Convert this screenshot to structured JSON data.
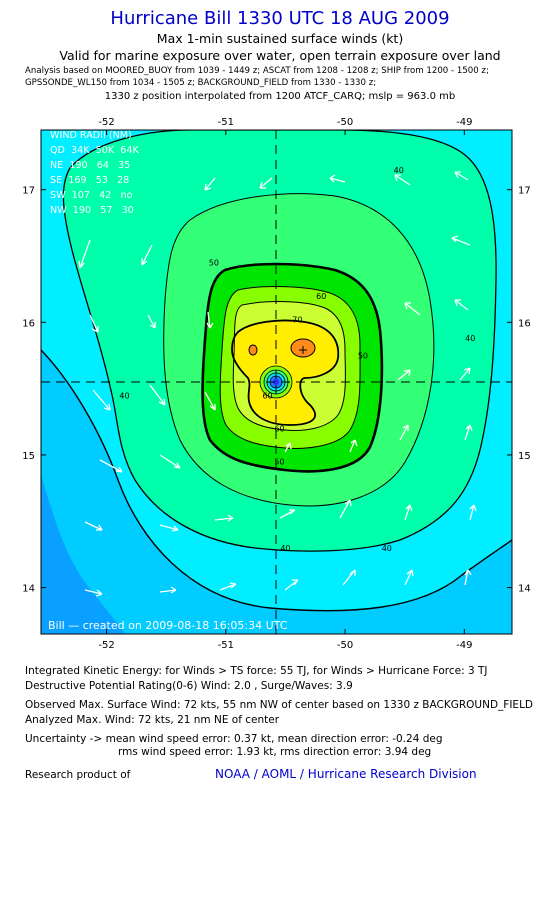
{
  "header": {
    "title": "Hurricane Bill 1330 UTC 18 AUG 2009",
    "subtitle1": "Max 1-min sustained surface winds (kt)",
    "subtitle2": "Valid for marine exposure over water, open terrain exposure over land",
    "analysis_line1": "Analysis based on  MOORED_BUOY from 1039 - 1449 z;  ASCAT from 1208 - 1208 z;  SHIP from 1200 - 1500 z;",
    "analysis_line2": "GPSSONDE_WL150 from 1034 - 1505 z;  BACKGROUND_FIELD from 1330 - 1330 z;",
    "position_line": "1330 z position interpolated from 1200 ATCF_CARQ; mslp = 963.0 mb"
  },
  "wind_radii": {
    "title": "WIND RADII (NM)",
    "rows": [
      "QD  34K  50K  64K",
      "NE  190   64   35",
      "SE  169   53   28",
      "SW  107   42   no",
      "NW  190   57   30"
    ]
  },
  "chart_data": {
    "type": "contour",
    "x_ticks": [
      "-52",
      "-51",
      "-50",
      "-49"
    ],
    "y_ticks": [
      "17",
      "16",
      "15",
      "14"
    ],
    "xlim": [
      -52.55,
      -48.6
    ],
    "ylim": [
      13.65,
      17.45
    ],
    "center": {
      "lon": -50.6,
      "lat": 15.65
    },
    "max_wind_location": {
      "lon": -50.38,
      "lat": 15.93
    },
    "contour_levels": [
      40,
      50,
      60,
      70
    ],
    "contour_labels": [
      {
        "text": "40",
        "lon": -49.65,
        "lat": 14.3
      },
      {
        "text": "40",
        "lon": -50.5,
        "lat": 14.3
      },
      {
        "text": "40",
        "lon": -51.85,
        "lat": 15.45
      },
      {
        "text": "40",
        "lon": -48.95,
        "lat": 15.88
      },
      {
        "text": "40",
        "lon": -49.55,
        "lat": 17.15
      },
      {
        "text": "50",
        "lon": -51.1,
        "lat": 16.45
      },
      {
        "text": "50",
        "lon": -50.55,
        "lat": 14.95
      },
      {
        "text": "50",
        "lon": -49.85,
        "lat": 15.75
      },
      {
        "text": "60",
        "lon": -50.2,
        "lat": 16.2
      },
      {
        "text": "60",
        "lon": -50.55,
        "lat": 15.2
      },
      {
        "text": "60",
        "lon": -50.65,
        "lat": 15.45
      },
      {
        "text": "70",
        "lon": -50.4,
        "lat": 16.02
      }
    ],
    "credit": "Bill — created on 2009-08-18 16:05:34 UTC",
    "colors": {
      "below_30": "#0aa0ff",
      "30_35": "#00ccff",
      "35_40": "#00eeff",
      "40_45": "#00ffaa",
      "45_50": "#33ff77",
      "50_55": "#00e600",
      "55_60": "#88ff00",
      "60_65": "#ccff33",
      "65_70": "#ffee00",
      "70_plus": "#ff8c1a"
    }
  },
  "footer": {
    "ike": "Integrated Kinetic Energy:  for Winds > TS force: 55 TJ,  for Winds > Hurricane Force: 3 TJ",
    "dpr": "Destructive Potential Rating(0-6)   Wind: 2.0 , Surge/Waves: 3.9",
    "obs": "Observed Max. Surface Wind: 72 kts, 55 nm NW of center based on 1330 z BACKGROUND_FIELD",
    "analyzed": "Analyzed Max. Wind: 72 kts, 21 nm NE of center",
    "unc1": "Uncertainty -> mean wind speed error: 0.37 kt,   mean direction error:  -0.24 deg",
    "unc2": "rms wind speed error: 1.93 kt,   rms direction error: 3.94 deg",
    "research": "Research product of",
    "org": "NOAA / AOML / Hurricane Research Division"
  }
}
